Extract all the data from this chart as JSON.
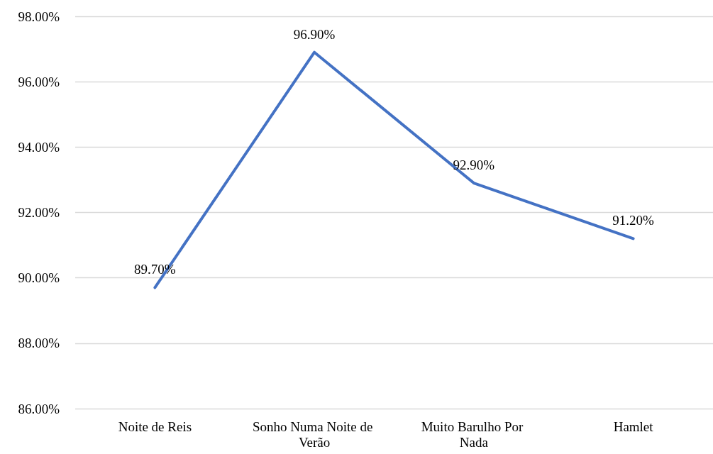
{
  "chart_data": {
    "type": "line",
    "categories": [
      "Noite de Reis",
      "Sonho Numa Noite de Verão",
      "Muito Barulho Por Nada",
      "Hamlet"
    ],
    "series": [
      {
        "color": "#4472c4",
        "values": [
          89.7,
          96.9,
          92.9,
          91.2
        ],
        "value_labels": [
          "89.70%",
          "96.90%",
          "92.90%",
          "91.20%"
        ]
      }
    ],
    "ylim": [
      86,
      98
    ],
    "yticks": [
      {
        "value": 86,
        "label": "86.00%"
      },
      {
        "value": 88,
        "label": "88.00%"
      },
      {
        "value": 90,
        "label": "90.00%"
      },
      {
        "value": 92,
        "label": "92.00%"
      },
      {
        "value": 94,
        "label": "94.00%"
      },
      {
        "value": 96,
        "label": "96.00%"
      },
      {
        "value": 98,
        "label": "98.00%"
      }
    ],
    "grid": "y",
    "marker": "none",
    "line_style": "solid"
  }
}
